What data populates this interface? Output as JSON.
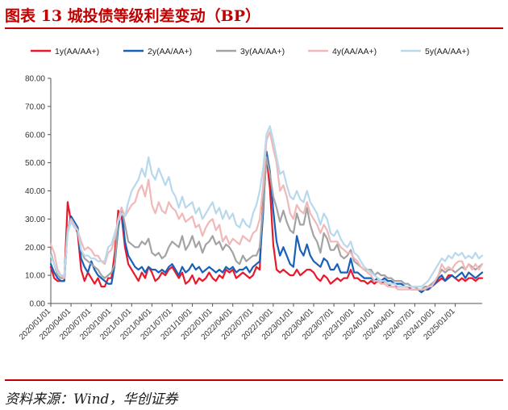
{
  "figure": {
    "title": "图表 13   城投债等级利差变动（BP）",
    "source": "资料来源：Wind，华创证券"
  },
  "chart_data": {
    "type": "line",
    "title": "城投债等级利差变动（BP）",
    "xlabel": "",
    "ylabel": "",
    "ylim": [
      0,
      80
    ],
    "yticks": [
      "0.00",
      "10.00",
      "20.00",
      "30.00",
      "40.00",
      "50.00",
      "60.00",
      "70.00",
      "80.00"
    ],
    "xticks": [
      "2020/01/01",
      "2020/04/01",
      "2020/07/01",
      "2020/10/01",
      "2021/01/01",
      "2021/04/01",
      "2021/07/01",
      "2021/10/01",
      "2022/01/01",
      "2022/04/01",
      "2022/07/01",
      "2022/10/01",
      "2023/01/01",
      "2023/04/01",
      "2023/07/01",
      "2023/10/01",
      "2024/01/01",
      "2024/04/01",
      "2024/07/01",
      "2024/10/01",
      "2025/01/01"
    ],
    "x_unit": "months since 2020/01",
    "x": [
      0,
      0.5,
      1,
      1.5,
      2,
      2.5,
      3,
      3.5,
      4,
      4.5,
      5,
      5.5,
      6,
      6.5,
      7,
      7.5,
      8,
      8.5,
      9,
      9.5,
      10,
      10.5,
      11,
      11.5,
      12,
      12.5,
      13,
      13.5,
      14,
      14.5,
      15,
      15.5,
      16,
      16.5,
      17,
      17.5,
      18,
      18.5,
      19,
      19.5,
      20,
      20.5,
      21,
      21.5,
      22,
      22.5,
      23,
      23.5,
      24,
      24.5,
      25,
      25.5,
      26,
      26.5,
      27,
      27.5,
      28,
      28.5,
      29,
      29.5,
      30,
      30.5,
      31,
      31.5,
      32,
      32.5,
      33,
      33.5,
      34,
      34.5,
      35,
      35.5,
      36,
      36.5,
      37,
      37.5,
      38,
      38.5,
      39,
      39.5,
      40,
      40.5,
      41,
      41.5,
      42,
      42.5,
      43,
      43.5,
      44,
      44.5,
      45,
      45.5,
      46,
      46.5,
      47,
      47.5,
      48,
      48.5,
      49,
      49.5,
      50,
      50.5,
      51,
      51.5,
      52,
      52.5,
      53,
      53.5,
      54,
      54.5,
      55,
      55.5,
      56,
      56.5,
      57,
      57.5,
      58,
      58.5,
      59,
      59.5,
      60,
      60.5,
      61,
      61.5,
      62,
      62.5,
      63,
      63.5,
      64
    ],
    "series": [
      {
        "name": "1y(AA/AA+)",
        "color": "#e8192c",
        "width": 2.2,
        "values": [
          13,
          9,
          8,
          8,
          8,
          36,
          29,
          28,
          25,
          12,
          8,
          11,
          9,
          7,
          9,
          6,
          6,
          9,
          9,
          18,
          33,
          31,
          20,
          14,
          12,
          10,
          8,
          11,
          9,
          13,
          11,
          8,
          9,
          11,
          10,
          12,
          13,
          11,
          9,
          11,
          7,
          8,
          10,
          7,
          9,
          8,
          9,
          11,
          9,
          8,
          10,
          9,
          12,
          11,
          12,
          9,
          10,
          11,
          10,
          9,
          10,
          13,
          12,
          38,
          52,
          41,
          21,
          12,
          11,
          12,
          11,
          10,
          10,
          12,
          10,
          11,
          12,
          12,
          11,
          9,
          8,
          10,
          9,
          7,
          8,
          9,
          8,
          9,
          9,
          12,
          9,
          9,
          8,
          8,
          7,
          8,
          7,
          8,
          7,
          8,
          7,
          6,
          6,
          6,
          6,
          6,
          6,
          5,
          5,
          5,
          4,
          5,
          5,
          6,
          7,
          8,
          9,
          8,
          10,
          10,
          9,
          8,
          9,
          8,
          9,
          9,
          8,
          9,
          9
        ]
      },
      {
        "name": "2y(AA/AA+)",
        "color": "#1860b8",
        "width": 2.2,
        "values": [
          14,
          11,
          9,
          8,
          8,
          26,
          31,
          29,
          27,
          16,
          13,
          11,
          15,
          12,
          10,
          9,
          8,
          7,
          7,
          14,
          27,
          34,
          22,
          17,
          15,
          13,
          12,
          13,
          11,
          13,
          12,
          12,
          11,
          12,
          11,
          13,
          14,
          12,
          10,
          13,
          11,
          12,
          14,
          12,
          13,
          11,
          12,
          13,
          12,
          11,
          12,
          11,
          13,
          12,
          13,
          11,
          12,
          12,
          13,
          11,
          13,
          14,
          15,
          32,
          54,
          47,
          33,
          22,
          17,
          20,
          17,
          14,
          13,
          24,
          19,
          17,
          21,
          17,
          15,
          14,
          13,
          16,
          15,
          12,
          12,
          14,
          11,
          11,
          11,
          16,
          11,
          11,
          10,
          9,
          9,
          9,
          8,
          9,
          8,
          9,
          8,
          8,
          7,
          7,
          7,
          6,
          6,
          6,
          6,
          5,
          4,
          5,
          5,
          6,
          7,
          9,
          10,
          8,
          9,
          10,
          9,
          10,
          11,
          9,
          11,
          10,
          9,
          10,
          11
        ]
      },
      {
        "name": "3y(AA/AA+)",
        "color": "#a3a3a3",
        "width": 2.2,
        "values": [
          18,
          14,
          10,
          9,
          9,
          27,
          30,
          28,
          26,
          19,
          16,
          15,
          14,
          13,
          12,
          10,
          9,
          10,
          11,
          14,
          30,
          34,
          28,
          22,
          21,
          20,
          20,
          22,
          21,
          23,
          18,
          17,
          18,
          16,
          17,
          20,
          22,
          21,
          20,
          24,
          19,
          21,
          24,
          20,
          22,
          18,
          21,
          22,
          24,
          21,
          22,
          19,
          21,
          20,
          18,
          15,
          14,
          17,
          15,
          16,
          17,
          17,
          20,
          35,
          52,
          46,
          38,
          34,
          29,
          33,
          29,
          26,
          25,
          32,
          28,
          28,
          34,
          28,
          24,
          22,
          18,
          25,
          23,
          19,
          19,
          21,
          17,
          16,
          17,
          19,
          15,
          14,
          13,
          12,
          12,
          12,
          10,
          11,
          10,
          10,
          9,
          9,
          8,
          8,
          8,
          7,
          7,
          6,
          6,
          5,
          5,
          6,
          6,
          7,
          8,
          10,
          12,
          11,
          12,
          12,
          11,
          12,
          13,
          12,
          14,
          13,
          12,
          13,
          14
        ]
      },
      {
        "name": "4y(AA/AA+)",
        "color": "#f0b8b8",
        "width": 2.2,
        "values": [
          21,
          18,
          12,
          10,
          9,
          26,
          30,
          28,
          26,
          22,
          19,
          20,
          19,
          17,
          17,
          15,
          14,
          18,
          19,
          23,
          30,
          34,
          31,
          33,
          35,
          36,
          40,
          42,
          38,
          44,
          35,
          32,
          36,
          33,
          32,
          36,
          34,
          33,
          30,
          32,
          29,
          30,
          31,
          27,
          28,
          24,
          27,
          29,
          30,
          26,
          28,
          22,
          24,
          21,
          23,
          22,
          21,
          24,
          23,
          22,
          25,
          26,
          30,
          42,
          58,
          61,
          55,
          50,
          40,
          42,
          38,
          32,
          30,
          35,
          33,
          32,
          36,
          32,
          30,
          28,
          25,
          28,
          26,
          22,
          22,
          22,
          20,
          19,
          18,
          18,
          16,
          15,
          13,
          12,
          11,
          10,
          8,
          8,
          7,
          7,
          6,
          6,
          6,
          5,
          5,
          5,
          5,
          5,
          5,
          5,
          5,
          5,
          6,
          6,
          8,
          10,
          14,
          12,
          13,
          12,
          14,
          15,
          15,
          12,
          14,
          12,
          14,
          12,
          14
        ]
      },
      {
        "name": "5y(AA/AA+)",
        "color": "#b8d8ec",
        "width": 2.2,
        "values": [
          17,
          14,
          11,
          10,
          10,
          25,
          29,
          27,
          26,
          19,
          17,
          17,
          16,
          16,
          15,
          15,
          15,
          20,
          21,
          25,
          29,
          32,
          31,
          36,
          40,
          42,
          44,
          48,
          45,
          52,
          46,
          44,
          48,
          45,
          42,
          45,
          40,
          38,
          34,
          38,
          34,
          35,
          36,
          32,
          34,
          30,
          32,
          34,
          36,
          32,
          34,
          30,
          33,
          30,
          32,
          28,
          27,
          30,
          28,
          27,
          32,
          35,
          40,
          48,
          60,
          63,
          58,
          52,
          46,
          47,
          42,
          38,
          37,
          40,
          37,
          36,
          40,
          36,
          34,
          32,
          28,
          32,
          30,
          25,
          24,
          26,
          23,
          21,
          20,
          22,
          18,
          17,
          15,
          13,
          12,
          11,
          10,
          9,
          8,
          8,
          7,
          7,
          7,
          6,
          6,
          6,
          6,
          6,
          6,
          6,
          6,
          7,
          8,
          10,
          12,
          14,
          16,
          15,
          17,
          16,
          18,
          17,
          18,
          16,
          17,
          16,
          18,
          16,
          17
        ]
      }
    ]
  }
}
